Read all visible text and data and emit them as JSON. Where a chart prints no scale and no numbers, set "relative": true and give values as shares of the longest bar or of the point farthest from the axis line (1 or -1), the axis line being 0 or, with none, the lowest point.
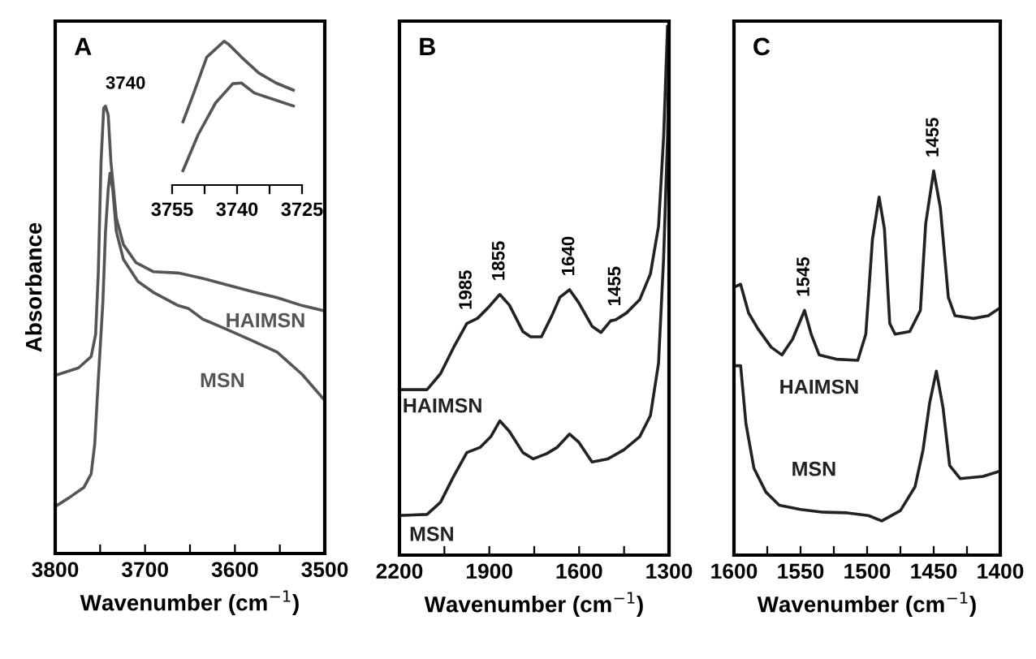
{
  "chart_data": [
    {
      "type": "line",
      "title": "A",
      "xlabel": "Wavenumber (cm$^{−1}$)",
      "ylabel": "Absorbance",
      "relative": true,
      "tick_labels": "x",
      "legend": false,
      "grid": false,
      "xlim": [
        3800,
        3500
      ],
      "xticks": [
        3800,
        {
          "value": 3750,
          "label": null
        },
        3700,
        {
          "value": 3650,
          "label": null
        },
        3600,
        {
          "value": 3550,
          "label": null
        },
        {
          "value": 3500,
          "label": "3500"
        }
      ],
      "annotations": [
        {
          "text": "3740",
          "x": 3744,
          "y": 1.0
        }
      ],
      "series": [
        {
          "name": "HAIMSN",
          "color": "#555555",
          "x": [
            3797,
            3774,
            3760,
            3755,
            3752,
            3749,
            3746,
            3744,
            3741,
            3738,
            3732,
            3724,
            3710,
            3691,
            3663,
            3636,
            3608,
            3580,
            3553,
            3525,
            3500
          ],
          "values": [
            0.4,
            0.415,
            0.44,
            0.49,
            0.63,
            0.875,
            0.996,
            1.0,
            0.98,
            0.875,
            0.75,
            0.69,
            0.65,
            0.63,
            0.627,
            0.615,
            0.6,
            0.585,
            0.572,
            0.554,
            0.542
          ]
        },
        {
          "name": "MSN",
          "color": "#555555",
          "x": [
            3800,
            3785,
            3768,
            3760,
            3756,
            3752,
            3747,
            3744,
            3741,
            3739,
            3736,
            3732,
            3724,
            3708,
            3691,
            3663,
            3652,
            3636,
            3608,
            3580,
            3553,
            3525,
            3500
          ],
          "values": [
            0.105,
            0.124,
            0.148,
            0.178,
            0.245,
            0.39,
            0.56,
            0.72,
            0.815,
            0.85,
            0.815,
            0.72,
            0.657,
            0.608,
            0.584,
            0.554,
            0.548,
            0.524,
            0.5,
            0.475,
            0.45,
            0.4,
            0.342
          ]
        }
      ]
    },
    {
      "type": "line",
      "relative": true,
      "tick_labels": "x",
      "legend": false,
      "grid": false,
      "xlim": [
        3755,
        3725
      ],
      "xticks": [
        3755,
        {
          "value": 3747.5,
          "label": null
        },
        3740,
        {
          "value": 3732.5,
          "label": null
        },
        3725
      ],
      "series": [
        {
          "color": "#555555",
          "x": [
            3752.5,
            3750,
            3747,
            3743,
            3742,
            3739,
            3735,
            3731,
            3727
          ],
          "values": [
            0.44,
            0.64,
            0.89,
            1.0,
            0.98,
            0.89,
            0.78,
            0.71,
            0.66
          ]
        },
        {
          "color": "#555555",
          "x": [
            3752.5,
            3749,
            3745,
            3741,
            3739,
            3736,
            3731,
            3727
          ],
          "values": [
            0.1,
            0.35,
            0.57,
            0.705,
            0.71,
            0.64,
            0.59,
            0.55
          ]
        }
      ]
    },
    {
      "type": "line",
      "title": "B",
      "xlabel": "Wavenumber (cm$^{−1}$)",
      "relative": true,
      "tick_labels": "x",
      "legend": false,
      "grid": false,
      "xlim": [
        2200,
        1300
      ],
      "xticks": [
        2200,
        {
          "value": 2050,
          "label": null
        },
        1900,
        {
          "value": 1750,
          "label": null
        },
        1600,
        {
          "value": 1450,
          "label": null
        },
        1300
      ],
      "annotations": [
        {
          "text": "1985",
          "x": 1975,
          "y": 0.438
        },
        {
          "text": "1855",
          "x": 1865,
          "y": 0.493
        },
        {
          "text": "1640",
          "x": 1632,
          "y": 0.502
        },
        {
          "text": "1455",
          "x": 1478,
          "y": 0.445
        }
      ],
      "series": [
        {
          "name": "HAIMSN",
          "color": "#222222",
          "x": [
            2196,
            2108,
            2063,
            2019,
            1975,
            1939,
            1904,
            1865,
            1833,
            1788,
            1762,
            1726,
            1691,
            1664,
            1632,
            1602,
            1557,
            1527,
            1495,
            1478,
            1442,
            1398,
            1362,
            1335,
            1318,
            1305
          ],
          "values": [
            0.313,
            0.313,
            0.343,
            0.393,
            0.438,
            0.448,
            0.468,
            0.493,
            0.473,
            0.423,
            0.413,
            0.413,
            0.453,
            0.488,
            0.502,
            0.478,
            0.433,
            0.421,
            0.443,
            0.445,
            0.458,
            0.483,
            0.532,
            0.622,
            0.791,
            1.0
          ]
        },
        {
          "name": "MSN",
          "color": "#222222",
          "x": [
            2196,
            2108,
            2063,
            2019,
            1975,
            1930,
            1895,
            1865,
            1833,
            1788,
            1753,
            1708,
            1673,
            1632,
            1602,
            1557,
            1504,
            1451,
            1398,
            1362,
            1335,
            1318,
            1305,
            1300
          ],
          "values": [
            0.075,
            0.077,
            0.1,
            0.149,
            0.194,
            0.204,
            0.224,
            0.254,
            0.234,
            0.194,
            0.182,
            0.192,
            0.204,
            0.229,
            0.214,
            0.176,
            0.182,
            0.199,
            0.224,
            0.264,
            0.363,
            0.562,
            0.791,
            0.98
          ]
        }
      ]
    },
    {
      "type": "line",
      "title": "C",
      "xlabel": "Wavenumber (cm$^{−1}$)",
      "relative": true,
      "tick_labels": "x",
      "legend": false,
      "grid": false,
      "xlim": [
        1600,
        1400
      ],
      "xticks": [
        1600,
        {
          "value": 1575,
          "label": null
        },
        1550,
        {
          "value": 1525,
          "label": null
        },
        1500,
        {
          "value": 1475,
          "label": null
        },
        1450,
        {
          "value": 1425,
          "label": null
        },
        1400
      ],
      "annotations": [
        {
          "text": "1545",
          "x": 1547,
          "y": 0.637
        },
        {
          "text": "1455",
          "x": 1450,
          "y": 1.0
        }
      ],
      "series": [
        {
          "name": "HAIMSN",
          "color": "#222222",
          "x": [
            1599,
            1595,
            1589,
            1582,
            1572,
            1564,
            1556,
            1547,
            1542,
            1536,
            1523,
            1507,
            1501,
            1496,
            1491,
            1487,
            1483,
            1479,
            1468,
            1460,
            1456,
            1450,
            1445,
            1439,
            1434,
            1420,
            1409,
            1400
          ],
          "values": [
            0.699,
            0.705,
            0.63,
            0.589,
            0.541,
            0.521,
            0.562,
            0.637,
            0.575,
            0.521,
            0.51,
            0.507,
            0.575,
            0.822,
            0.932,
            0.849,
            0.603,
            0.575,
            0.582,
            0.637,
            0.863,
            1.0,
            0.904,
            0.671,
            0.623,
            0.616,
            0.623,
            0.644
          ]
        },
        {
          "name": "MSN",
          "color": "#222222",
          "x": [
            1599,
            1595,
            1591,
            1585,
            1576,
            1566,
            1550,
            1534,
            1515,
            1499,
            1489,
            1475,
            1464,
            1458,
            1453,
            1448,
            1443,
            1438,
            1430,
            1413,
            1400
          ],
          "values": [
            0.493,
            0.493,
            0.342,
            0.226,
            0.164,
            0.13,
            0.119,
            0.112,
            0.11,
            0.103,
            0.089,
            0.116,
            0.178,
            0.274,
            0.397,
            0.479,
            0.384,
            0.233,
            0.199,
            0.205,
            0.219
          ]
        }
      ]
    }
  ]
}
